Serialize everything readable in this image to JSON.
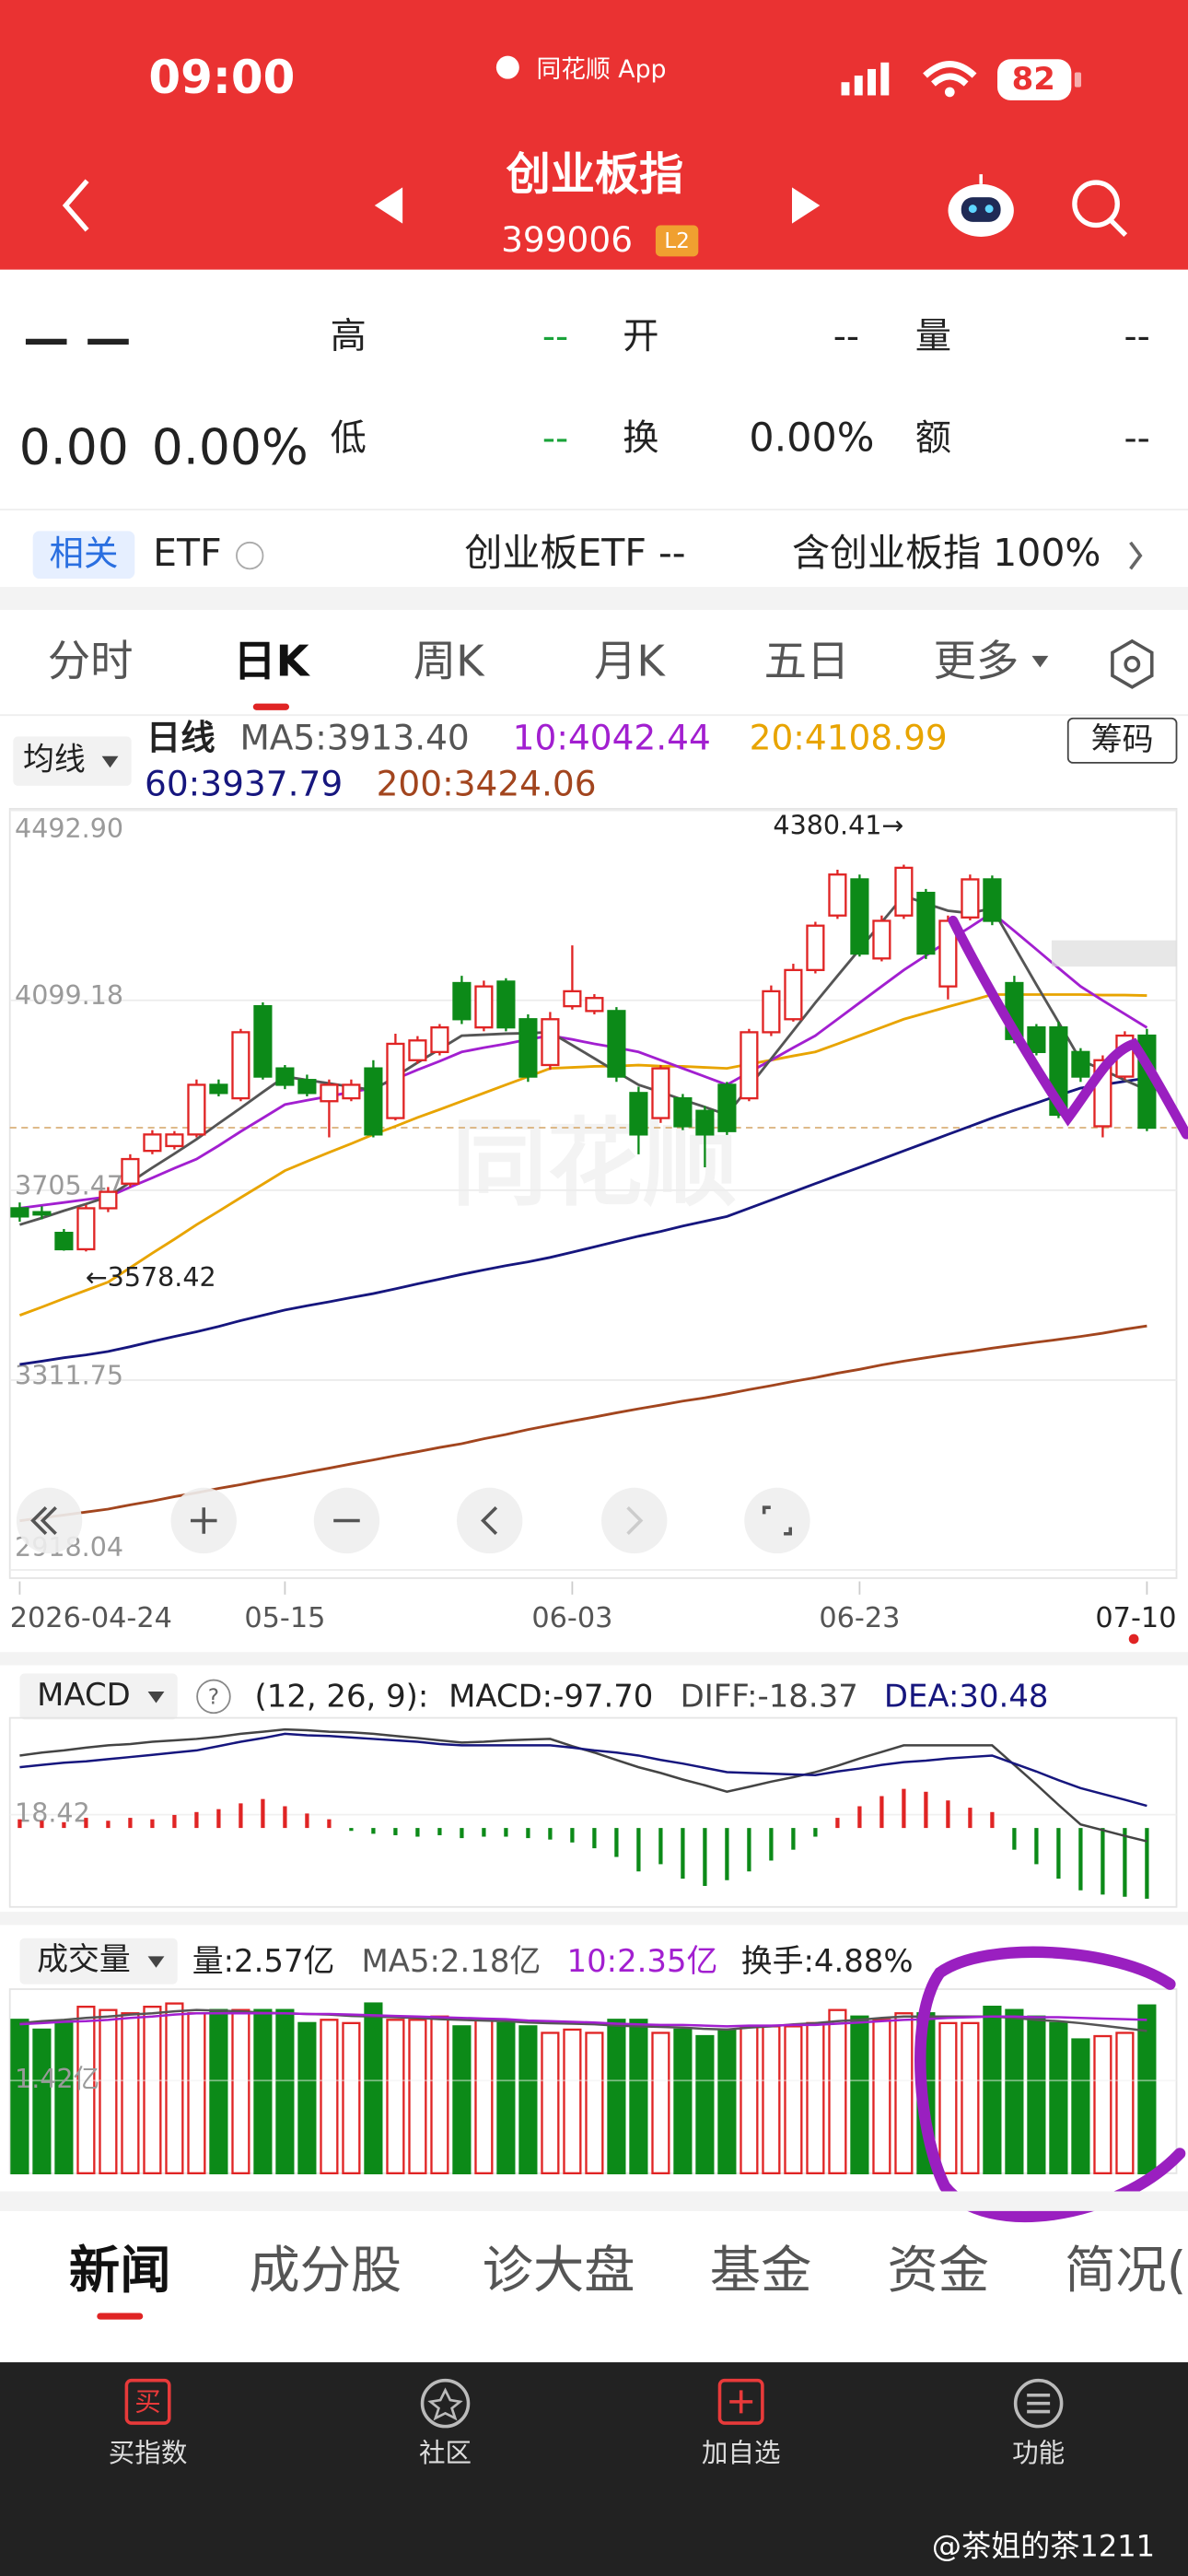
{
  "status_bar": {
    "time": "09:00",
    "app": "同花顺 App",
    "battery": "82"
  },
  "header": {
    "title": "创业板指",
    "code": "399006",
    "level": "L2"
  },
  "quote": {
    "price": "— —",
    "change": "0.00",
    "change_pct": "0.00%",
    "high_label": "高",
    "high": "--",
    "low_label": "低",
    "low": "--",
    "open_label": "开",
    "open": "--",
    "turnover_label": "换",
    "turnover": "0.00%",
    "volume_label": "量",
    "volume": "--",
    "amount_label": "额",
    "amount": "--"
  },
  "related": {
    "badge": "相关",
    "type": "ETF",
    "etf": "创业板ETF --",
    "contains": "含创业板指 100%"
  },
  "tabs": {
    "items": [
      "分时",
      "日K",
      "周K",
      "月K",
      "五日",
      "更多"
    ],
    "active": 1
  },
  "kline": {
    "selector": "均线",
    "period": "日线",
    "chips": "筹码",
    "categories": [
      "2026-04-24",
      null,
      null,
      null,
      null,
      null,
      null,
      null,
      null,
      null,
      null,
      null,
      "05-15",
      null,
      null,
      null,
      null,
      null,
      null,
      null,
      null,
      null,
      null,
      null,
      null,
      "06-03",
      null,
      null,
      null,
      null,
      null,
      null,
      null,
      null,
      null,
      null,
      null,
      null,
      "06-23",
      null,
      null,
      null,
      null,
      null,
      null,
      null,
      null,
      null,
      null,
      null,
      null,
      "07-10"
    ],
    "ylim": [
      2918.04,
      4492.9
    ],
    "yticks": [
      {
        "value": 4492.9,
        "label": "4492.90"
      },
      4099.18,
      3705.47,
      3311.75,
      2918.04
    ],
    "up_color": "#e02424",
    "down_color": "#0c8a18",
    "candles": [
      [
        3668,
        3680,
        3640,
        3651
      ],
      [
        3660,
        3672,
        3645,
        3655
      ],
      [
        3617,
        3625,
        3580,
        3583
      ],
      [
        3583,
        3675,
        3578.42,
        3668
      ],
      [
        3668,
        3712,
        3660,
        3702
      ],
      [
        3719,
        3780,
        3712,
        3770
      ],
      [
        3787,
        3830,
        3780,
        3821
      ],
      [
        3797,
        3828,
        3790,
        3821
      ],
      [
        3821,
        3935,
        3815,
        3924
      ],
      [
        3924,
        3935,
        3900,
        3907
      ],
      [
        3896,
        4040,
        3890,
        4033
      ],
      [
        4087,
        4095,
        3935,
        3941
      ],
      [
        3958,
        3965,
        3915,
        3924
      ],
      [
        3934,
        3945,
        3900,
        3907
      ],
      [
        3890,
        3935,
        3815,
        3924
      ],
      [
        3896,
        3935,
        3890,
        3924
      ],
      [
        3958,
        3975,
        3815,
        3821
      ],
      [
        3855,
        4030,
        3850,
        4009
      ],
      [
        3975,
        4025,
        3968,
        4016
      ],
      [
        3992,
        4050,
        3985,
        4043
      ],
      [
        4135,
        4150,
        4050,
        4060
      ],
      [
        4043,
        4140,
        4035,
        4128
      ],
      [
        4138,
        4145,
        4035,
        4043
      ],
      [
        4060,
        4070,
        3930,
        3941
      ],
      [
        3965,
        4075,
        3955,
        4060
      ],
      [
        4087,
        4213,
        4080,
        4118
      ],
      [
        4077,
        4112,
        4070,
        4104
      ],
      [
        4077,
        4085,
        3930,
        3941
      ],
      [
        3907,
        3920,
        3780,
        3821
      ],
      [
        3855,
        3965,
        3845,
        3958
      ],
      [
        3896,
        3905,
        3830,
        3838
      ],
      [
        3870,
        3880,
        3753,
        3821
      ],
      [
        3924,
        3930,
        3820,
        3828
      ],
      [
        3896,
        4040,
        3890,
        4033
      ],
      [
        4033,
        4130,
        4025,
        4118
      ],
      [
        4060,
        4175,
        4055,
        4162
      ],
      [
        4162,
        4262,
        4155,
        4254
      ],
      [
        4275,
        4370,
        4268,
        4360
      ],
      [
        4350,
        4360,
        4190,
        4196
      ],
      [
        4186,
        4275,
        4180,
        4264
      ],
      [
        4275,
        4380.41,
        4268,
        4374
      ],
      [
        4322,
        4330,
        4185,
        4196
      ],
      [
        4128,
        4275,
        4101,
        4264
      ],
      [
        4271,
        4360,
        4265,
        4350
      ],
      [
        4350,
        4358,
        4255,
        4264
      ],
      [
        4135,
        4150,
        4010,
        4019
      ],
      [
        4043,
        4050,
        3985,
        3992
      ],
      [
        4043,
        4055,
        3855,
        3862
      ],
      [
        3992,
        4000,
        3930,
        3941
      ],
      [
        3838,
        3985,
        3815,
        3975
      ],
      [
        3941,
        4035,
        3935,
        4026
      ],
      [
        4026,
        4040,
        3828,
        3835
      ]
    ],
    "ma": [
      {
        "legend": "MA5:3913.40",
        "color": "#555555",
        "values": [
          3634,
          3648,
          3663,
          3677,
          3692,
          3722,
          3752,
          3781,
          3811,
          3844,
          3876,
          3909,
          3941,
          3934,
          3927,
          3920,
          3913,
          3941,
          3970,
          3998,
          4026,
          4028,
          4030,
          4031,
          4033,
          4006,
          3979,
          3951,
          3924,
          3909,
          3893,
          3878,
          3862,
          3920,
          3978,
          4036,
          4094,
          4150,
          4205,
          4261,
          4316,
          4300,
          4285,
          4280,
          4290,
          4211,
          4132,
          4054,
          3975,
          3955,
          3934,
          3913.4
        ]
      },
      {
        "legend": "10:4042.44",
        "color": "#a21fd0",
        "values": [
          3668,
          3674,
          3680,
          3686,
          3692,
          3712,
          3731,
          3751,
          3770,
          3798,
          3827,
          3855,
          3883,
          3892,
          3900,
          3909,
          3917,
          3936,
          3955,
          3973,
          3992,
          4001,
          4009,
          4018,
          4026,
          4018,
          4009,
          4001,
          3992,
          3975,
          3958,
          3941,
          3924,
          3950,
          3975,
          4001,
          4026,
          4060,
          4094,
          4128,
          4162,
          4192,
          4222,
          4251,
          4281,
          4243,
          4205,
          4166,
          4128,
          4099,
          4071,
          4042.44
        ]
      },
      {
        "legend": "20:4108.99",
        "color": "#e8a400",
        "values": [
          3446,
          3463,
          3481,
          3498,
          3515,
          3545,
          3575,
          3604,
          3634,
          3662,
          3690,
          3718,
          3746,
          3765,
          3784,
          3802,
          3821,
          3838,
          3856,
          3873,
          3890,
          3907,
          3924,
          3941,
          3958,
          3960,
          3962,
          3963,
          3965,
          3963,
          3962,
          3960,
          3958,
          3967,
          3975,
          3984,
          3992,
          4009,
          4026,
          4043,
          4060,
          4073,
          4086,
          4098,
          4111,
          4111,
          4111,
          4111,
          4111,
          4110,
          4110,
          4108.99
        ]
      },
      {
        "legend": "60:3937.79",
        "color": "#16167e",
        "values": [
          3344,
          3351,
          3358,
          3364,
          3371,
          3381,
          3392,
          3402,
          3412,
          3423,
          3435,
          3446,
          3457,
          3466,
          3474,
          3483,
          3491,
          3501,
          3511,
          3521,
          3531,
          3540,
          3549,
          3557,
          3566,
          3577,
          3588,
          3599,
          3610,
          3620,
          3631,
          3641,
          3651,
          3668,
          3685,
          3702,
          3719,
          3736,
          3753,
          3770,
          3787,
          3804,
          3821,
          3838,
          3855,
          3871,
          3886,
          3902,
          3917,
          3924,
          3931,
          3937.79
        ]
      },
      {
        "legend": "200:3424.06",
        "color": "#a2451e",
        "values": [
          3020,
          3026,
          3032,
          3038,
          3044,
          3053,
          3061,
          3070,
          3078,
          3087,
          3095,
          3104,
          3112,
          3121,
          3129,
          3138,
          3146,
          3155,
          3163,
          3172,
          3180,
          3190,
          3199,
          3209,
          3218,
          3227,
          3235,
          3244,
          3252,
          3260,
          3268,
          3275,
          3283,
          3292,
          3300,
          3309,
          3317,
          3326,
          3334,
          3343,
          3351,
          3358,
          3365,
          3371,
          3378,
          3384,
          3390,
          3396,
          3402,
          3409,
          3417,
          3424.06
        ]
      }
    ],
    "high_note": "4380.41→",
    "low_note": "←3578.42"
  },
  "macd": {
    "selector": "MACD",
    "params": "(12, 26, 9):",
    "ylim": [
      -109,
      152
    ],
    "yticks": [
      18.42
    ],
    "histogram": {
      "legend": "MACD:-97.70",
      "values": [
        12,
        10,
        8,
        14,
        10,
        14,
        12,
        18,
        22,
        26,
        34,
        40,
        30,
        20,
        12,
        -4,
        -8,
        -10,
        -12,
        -10,
        -14,
        -12,
        -12,
        -14,
        -16,
        -20,
        -28,
        -40,
        -60,
        -50,
        -70,
        -80,
        -72,
        -60,
        -45,
        -30,
        -12,
        14,
        30,
        44,
        54,
        50,
        38,
        28,
        22,
        -30,
        -50,
        -70,
        -86,
        -92,
        -95,
        -97.7
      ]
    },
    "lines": [
      {
        "legend": "DIFF:-18.37",
        "color": "#444444",
        "values": [
          100,
          104,
          107,
          111,
          114,
          116,
          119,
          121,
          123,
          126,
          130,
          133,
          136,
          135,
          133,
          132,
          130,
          127,
          124,
          121,
          118,
          119,
          121,
          122,
          123,
          113,
          104,
          94,
          84,
          76,
          67,
          59,
          50,
          57,
          64,
          70,
          77,
          86,
          96,
          105,
          114,
          114,
          114,
          114,
          114,
          87,
          60,
          32,
          5,
          -3,
          -11,
          -18.37
        ]
      },
      {
        "legend": "DEA:30.48",
        "color": "#16167e",
        "values": [
          84,
          87,
          90,
          92,
          95,
          98,
          101,
          104,
          107,
          113,
          119,
          124,
          130,
          128,
          127,
          125,
          123,
          121,
          119,
          116,
          114,
          114,
          114,
          114,
          114,
          111,
          107,
          104,
          100,
          94,
          89,
          83,
          77,
          76,
          75,
          74,
          73,
          78,
          82,
          87,
          91,
          93,
          96,
          98,
          100,
          89,
          78,
          66,
          55,
          47,
          39,
          30.48
        ]
      }
    ]
  },
  "volume": {
    "selector": "成交量",
    "legend": "量:2.57亿",
    "turnover": "换手:4.88%",
    "ylim": [
      0,
      2.82
    ],
    "yticks": [
      {
        "value": 1.42,
        "label": "1.42亿"
      }
    ],
    "values": [
      2.35,
      2.2,
      2.3,
      2.55,
      2.5,
      2.45,
      2.55,
      2.6,
      2.45,
      2.5,
      2.5,
      2.5,
      2.5,
      2.3,
      2.35,
      2.3,
      2.6,
      2.35,
      2.35,
      2.4,
      2.25,
      2.35,
      2.3,
      2.25,
      2.15,
      2.2,
      2.15,
      2.35,
      2.35,
      2.15,
      2.2,
      2.1,
      2.2,
      2.25,
      2.25,
      2.25,
      2.3,
      2.5,
      2.4,
      2.35,
      2.45,
      2.45,
      2.3,
      2.3,
      2.55,
      2.5,
      2.4,
      2.3,
      2.05,
      2.1,
      2.15,
      2.57
    ],
    "lines": [
      {
        "legend": "MA5:2.18亿",
        "color": "#555555",
        "values": [
          2.3,
          2.33,
          2.35,
          2.38,
          2.4,
          2.43,
          2.45,
          2.48,
          2.5,
          2.49,
          2.48,
          2.46,
          2.45,
          2.44,
          2.43,
          2.41,
          2.4,
          2.39,
          2.38,
          2.36,
          2.35,
          2.34,
          2.33,
          2.31,
          2.3,
          2.29,
          2.28,
          2.26,
          2.25,
          2.24,
          2.23,
          2.21,
          2.2,
          2.23,
          2.25,
          2.28,
          2.3,
          2.33,
          2.35,
          2.38,
          2.4,
          2.4,
          2.4,
          2.4,
          2.4,
          2.38,
          2.35,
          2.33,
          2.3,
          2.26,
          2.22,
          2.18
        ]
      },
      {
        "legend": "10:2.35亿",
        "color": "#a21fd0",
        "values": [
          2.28,
          2.3,
          2.32,
          2.33,
          2.35,
          2.38,
          2.4,
          2.43,
          2.45,
          2.45,
          2.45,
          2.45,
          2.45,
          2.44,
          2.44,
          2.43,
          2.42,
          2.41,
          2.4,
          2.39,
          2.38,
          2.37,
          2.36,
          2.34,
          2.33,
          2.32,
          2.31,
          2.29,
          2.28,
          2.27,
          2.27,
          2.26,
          2.25,
          2.26,
          2.26,
          2.27,
          2.27,
          2.29,
          2.31,
          2.33,
          2.35,
          2.36,
          2.38,
          2.39,
          2.4,
          2.4,
          2.39,
          2.39,
          2.38,
          2.37,
          2.36,
          2.35
        ]
      }
    ]
  },
  "news_tabs": {
    "items": [
      "新闻",
      "成分股",
      "诊大盘",
      "基金",
      "资金",
      "简况("
    ],
    "active": 0
  },
  "bottom_bar": [
    "买指数",
    "社区",
    "加自选",
    "功能"
  ],
  "watermark": "@茶姐的茶1211"
}
